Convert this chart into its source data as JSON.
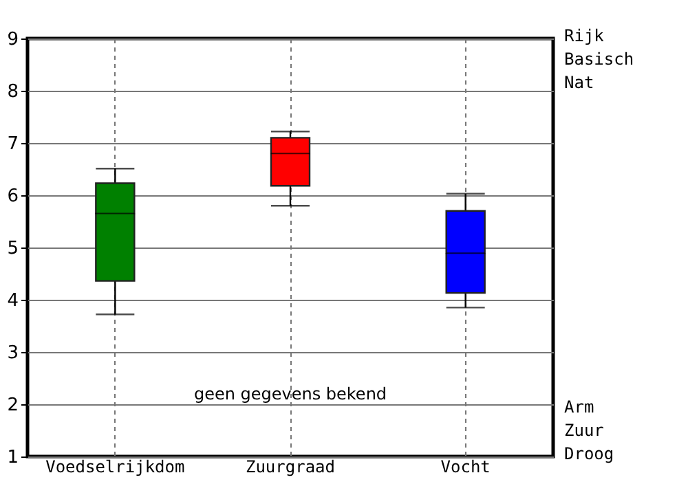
{
  "chart_data": {
    "type": "box",
    "categories": [
      "Voedselrijkdom",
      "Zuurgraad",
      "Vocht"
    ],
    "boxes": [
      {
        "low": 3.72,
        "q1": 4.36,
        "median": 5.65,
        "q3": 6.23,
        "high": 6.51
      },
      {
        "low": 5.8,
        "q1": 6.18,
        "median": 6.8,
        "q3": 7.1,
        "high": 7.22
      },
      {
        "low": 3.85,
        "q1": 4.13,
        "median": 4.89,
        "q3": 5.7,
        "high": 6.03
      }
    ],
    "colors": [
      "#008000",
      "#ff0000",
      "#0000ff"
    ],
    "ylim": [
      1,
      9
    ],
    "yticks": [
      1,
      2,
      3,
      4,
      5,
      6,
      7,
      8,
      9
    ],
    "annotations": [
      "geen gegevens bekend",
      "Rijk\nBasisch\nNat",
      "Arm\nZuur\nDroog"
    ],
    "grid": true
  }
}
